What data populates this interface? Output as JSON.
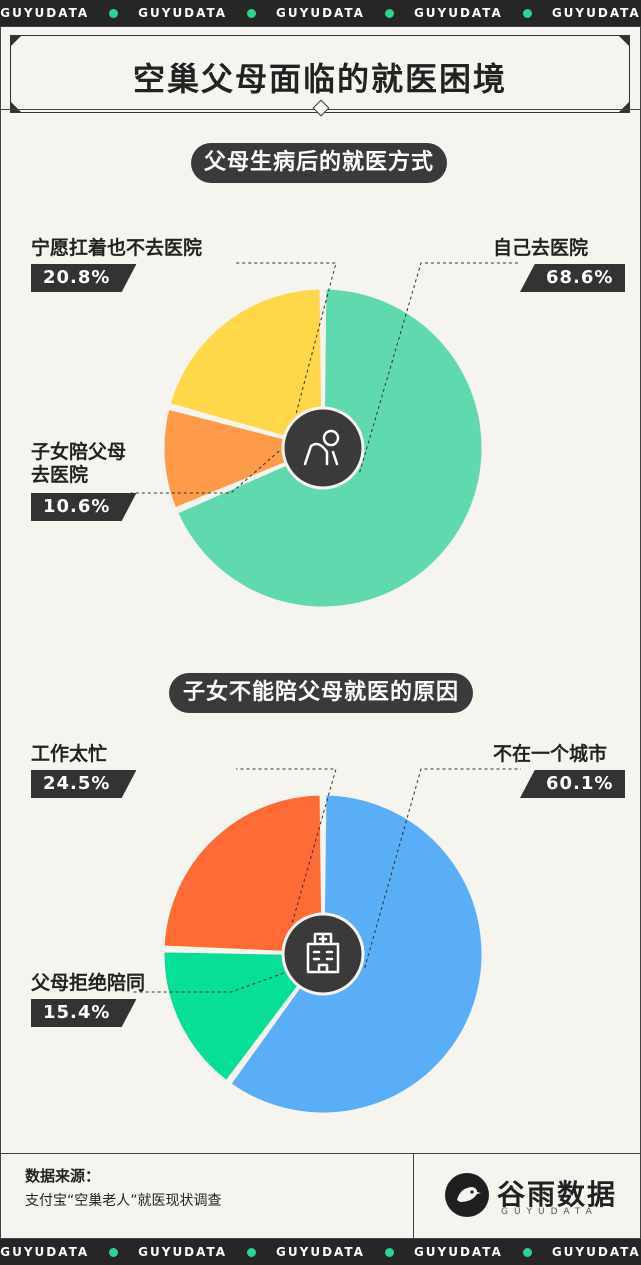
{
  "brand_strip": {
    "words": [
      "GUYUDATA",
      "GUYUDATA",
      "GUYUDATA",
      "GUYUDATA",
      "GUYUDATA"
    ],
    "dot_color": "#2fd38f"
  },
  "header": {
    "title": "空巢父母面临的就医困境"
  },
  "section1": {
    "title": "父母生病后的就医方式",
    "icon": "elderly-person-icon"
  },
  "section2": {
    "title": "子女不能陪父母就医的原因",
    "icon": "hospital-building-icon"
  },
  "chart_data": [
    {
      "type": "pie",
      "title": "父母生病后的就医方式",
      "categories": [
        "自己去医院",
        "子女陪父母去医院",
        "宁愿扛着也不去医院"
      ],
      "label_lines": [
        [
          "自己去医院"
        ],
        [
          "子女陪父母",
          "去医院"
        ],
        [
          "宁愿扛着也不去医院"
        ]
      ],
      "values": [
        68.6,
        10.6,
        20.8
      ],
      "display": [
        "68.6%",
        "10.6%",
        "20.8%"
      ],
      "colors": [
        "#5fd9ad",
        "#ff9a4a",
        "#ffd84a"
      ]
    },
    {
      "type": "pie",
      "title": "子女不能陪父母就医的原因",
      "categories": [
        "不在一个城市",
        "父母拒绝陪同",
        "工作太忙"
      ],
      "label_lines": [
        [
          "不在一个城市"
        ],
        [
          "父母拒绝陪同"
        ],
        [
          "工作太忙"
        ]
      ],
      "values": [
        60.1,
        15.4,
        24.5
      ],
      "display": [
        "60.1%",
        "15.4%",
        "24.5%"
      ],
      "colors": [
        "#5aaef5",
        "#07df96",
        "#ff6a35"
      ]
    }
  ],
  "footer": {
    "source_title": "数据来源：",
    "source_text": "支付宝“空巢老人”就医现状调查",
    "logo_name": "谷雨数据",
    "logo_sub": "GUYUDATA"
  }
}
